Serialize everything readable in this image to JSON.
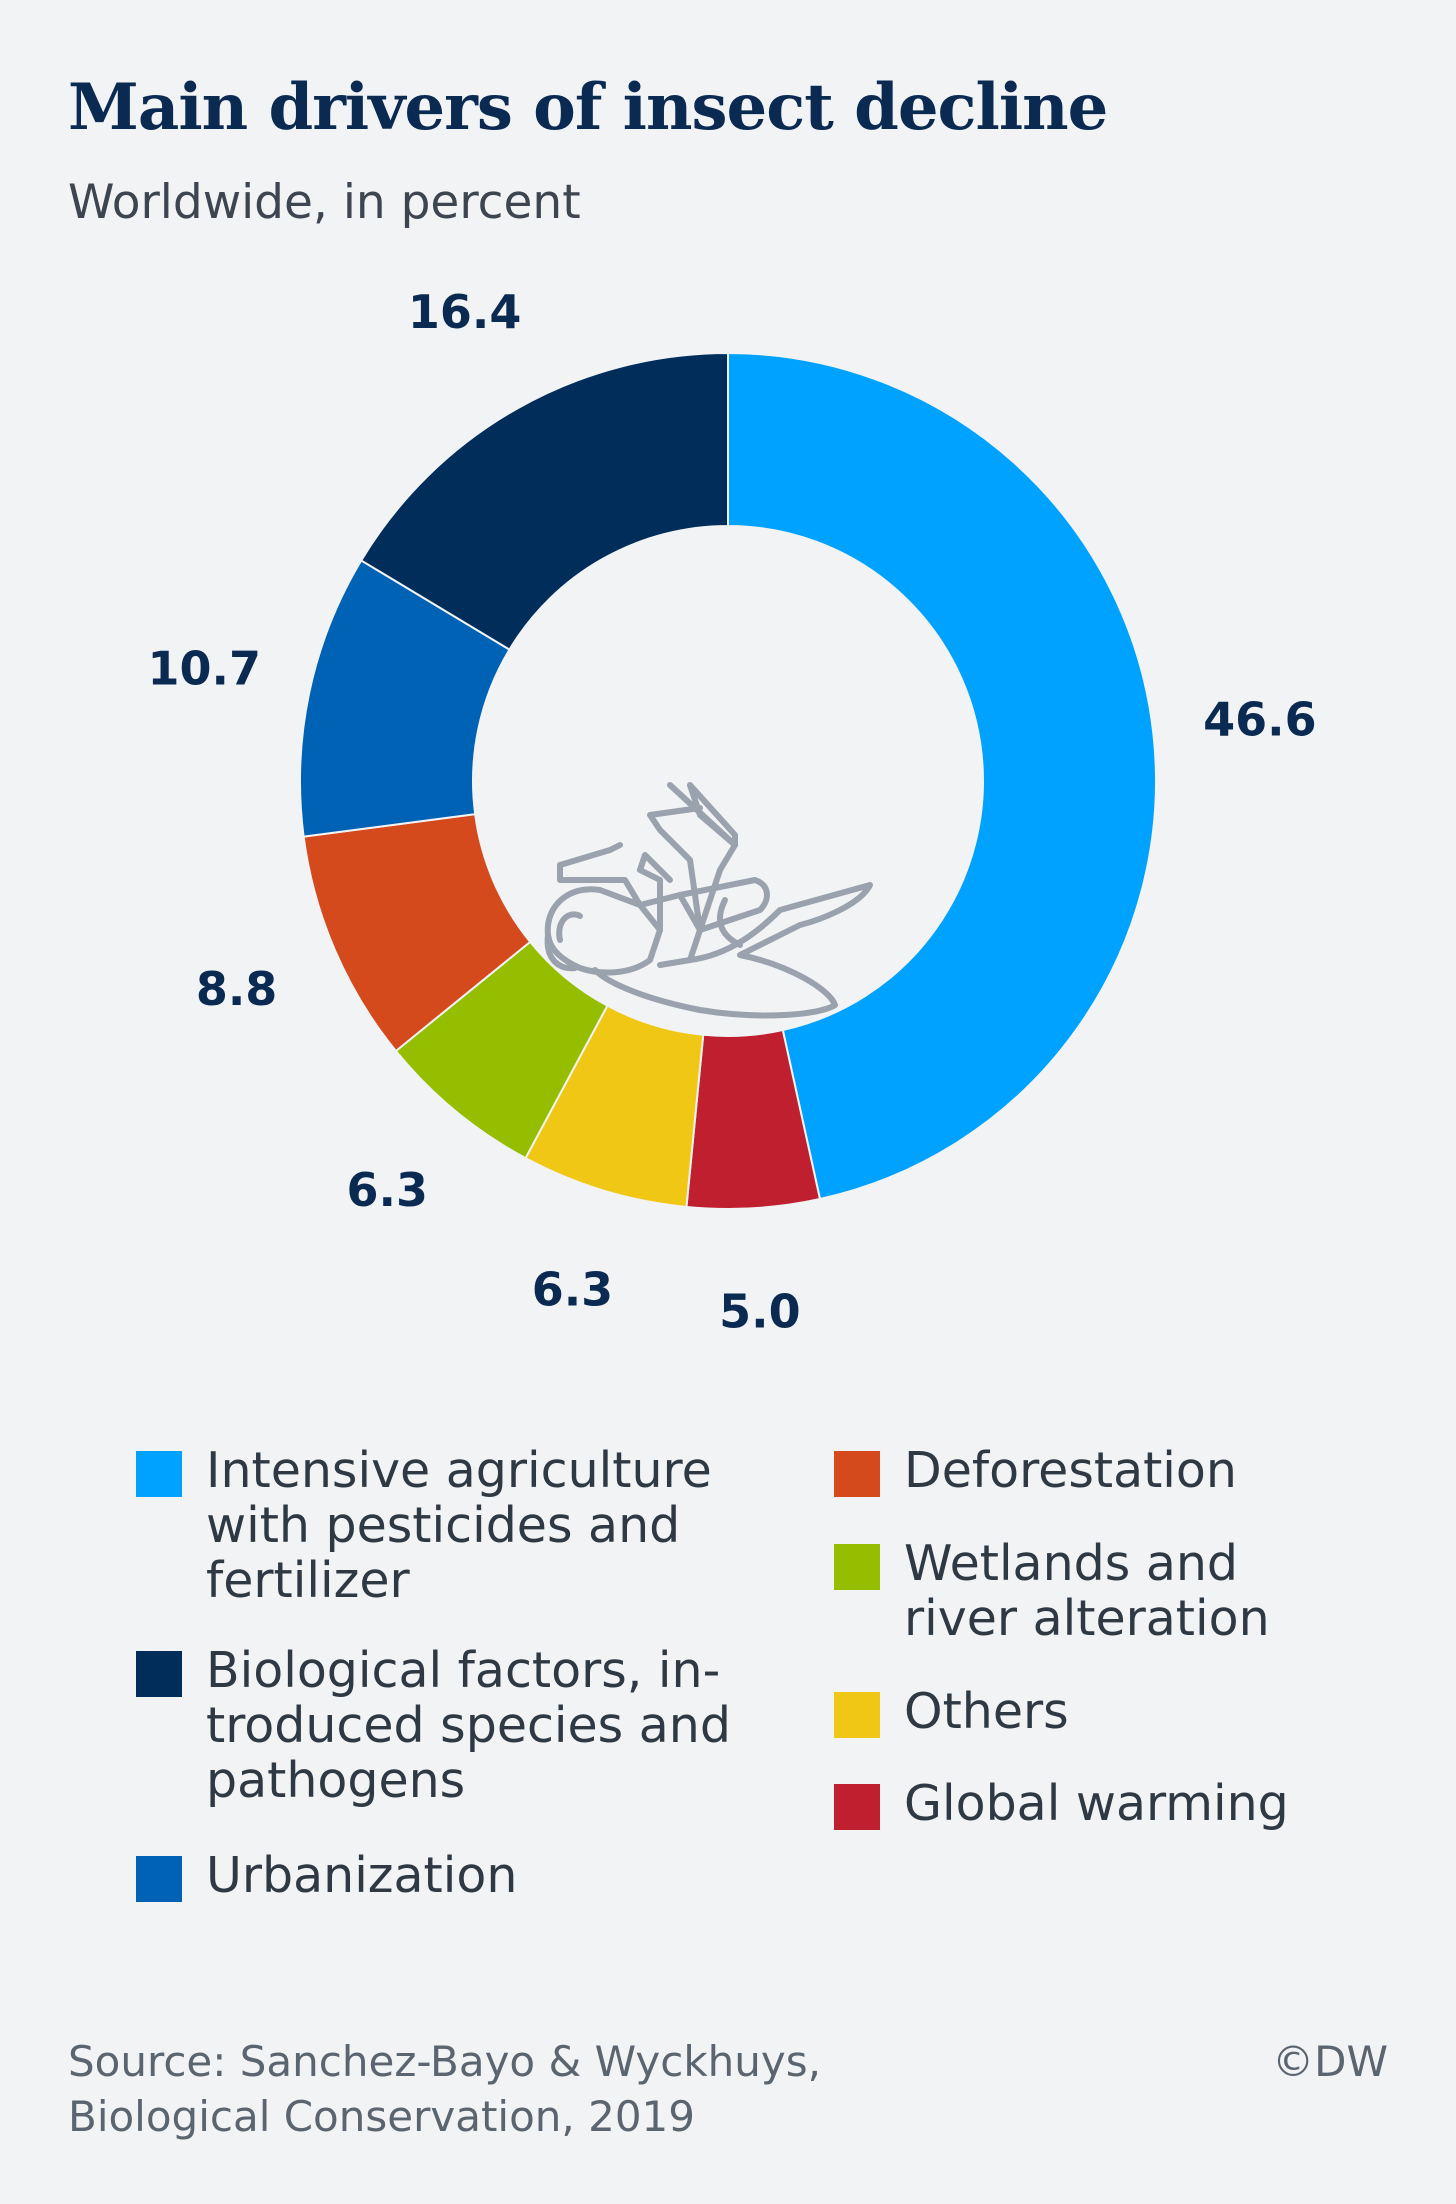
{
  "header": {
    "title": "Main drivers of insect decline",
    "subtitle": "Worldwide, in percent"
  },
  "chart_data": {
    "type": "pie",
    "style": "donut",
    "title": "Main drivers of insect decline",
    "subtitle": "Worldwide, in percent",
    "categories": [
      "Intensive agriculture with pesticides and fertilizer",
      "Global warming",
      "Others",
      "Wetlands and river alteration",
      "Deforestation",
      "Urbanization",
      "Biological factors, introduced species and pathogens"
    ],
    "values": [
      46.6,
      5.0,
      6.3,
      6.3,
      8.8,
      10.7,
      16.4
    ],
    "labels": [
      "46.6",
      "5.0",
      "6.3",
      "6.3",
      "8.8",
      "10.7",
      "16.4"
    ],
    "colors": [
      "#00a2ff",
      "#bf1f2e",
      "#f0c714",
      "#96be00",
      "#d44a1c",
      "#0062b4",
      "#002d5a"
    ],
    "center_icon": "dead-insect-icon"
  },
  "legend": {
    "left": [
      {
        "label": "Intensive agriculture\nwith pesticides and\nfertilizer",
        "color": "#00a2ff"
      },
      {
        "label": "Biological factors, in-\ntroduced species and\npathogens",
        "color": "#002d5a"
      },
      {
        "label": "Urbanization",
        "color": "#0062b4"
      }
    ],
    "right": [
      {
        "label": "Deforestation",
        "color": "#d44a1c"
      },
      {
        "label": "Wetlands and\nriver alteration",
        "color": "#96be00"
      },
      {
        "label": "Others",
        "color": "#f0c714"
      },
      {
        "label": "Global warming",
        "color": "#bf1f2e"
      }
    ]
  },
  "footer": {
    "source": "Source: Sanchez-Bayo & Wyckhuys,\nBiological Conservation, 2019",
    "copyright": "©DW"
  }
}
